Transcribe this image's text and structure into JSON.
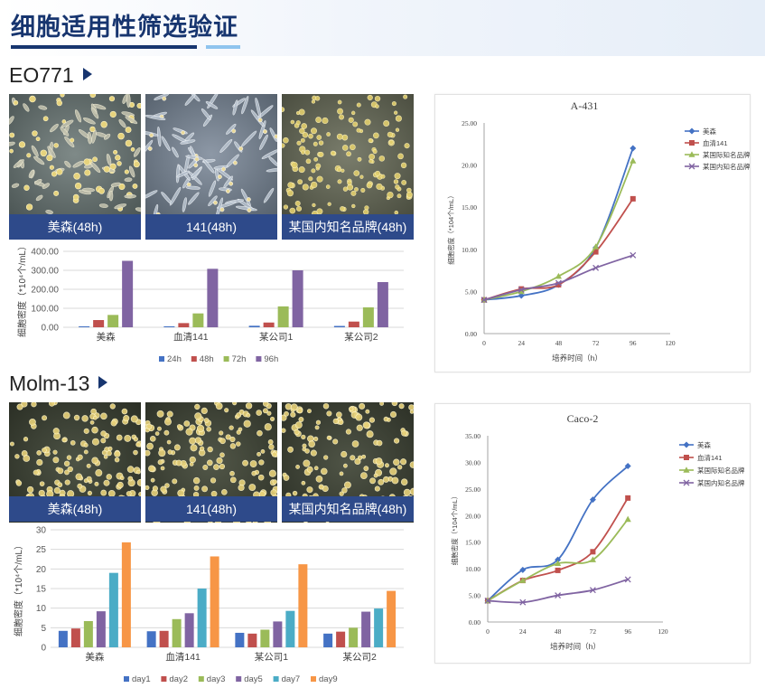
{
  "page": {
    "title": "细胞适用性筛选验证",
    "sections": [
      {
        "title": "EO771",
        "captions": [
          "美森(48h)",
          "141(48h)",
          "某国内知名品牌(48h)"
        ]
      },
      {
        "title": "Molm-13",
        "captions": [
          "美森(48h)",
          "141(48h)",
          "某国内知名品牌(48h)"
        ]
      }
    ]
  },
  "chart_data": [
    {
      "type": "bar",
      "ylabel": "细胞密度（*10⁴个/mL）",
      "ylim": [
        0,
        400
      ],
      "yticks": [
        "0.00",
        "100.00",
        "200.00",
        "300.00",
        "400.00"
      ],
      "categories": [
        "美森",
        "血清141",
        "某公司1",
        "某公司2"
      ],
      "legend_position": "bottom",
      "series": [
        {
          "name": "24h",
          "color": "#4472c4",
          "values": [
            5,
            5,
            8,
            7
          ]
        },
        {
          "name": "48h",
          "color": "#c0504d",
          "values": [
            38,
            22,
            25,
            30
          ]
        },
        {
          "name": "72h",
          "color": "#9bbb59",
          "values": [
            65,
            73,
            110,
            105
          ]
        },
        {
          "name": "96h",
          "color": "#8064a2",
          "values": [
            350,
            308,
            300,
            238
          ]
        }
      ]
    },
    {
      "type": "bar",
      "ylabel": "细胞密度（*10⁴个/mL）",
      "ylim": [
        0,
        30
      ],
      "yticks": [
        "0",
        "5",
        "10",
        "15",
        "20",
        "25",
        "30"
      ],
      "categories": [
        "美森",
        "血清141",
        "某公司1",
        "某公司2"
      ],
      "legend_position": "bottom",
      "series": [
        {
          "name": "day1",
          "color": "#4472c4",
          "values": [
            4.2,
            4.1,
            3.7,
            3.5
          ]
        },
        {
          "name": "day2",
          "color": "#c0504d",
          "values": [
            4.8,
            4.2,
            3.5,
            4.0
          ]
        },
        {
          "name": "day3",
          "color": "#9bbb59",
          "values": [
            6.7,
            7.2,
            4.5,
            5.0
          ]
        },
        {
          "name": "day5",
          "color": "#8064a2",
          "values": [
            9.2,
            8.7,
            6.6,
            9.1
          ]
        },
        {
          "name": "day7",
          "color": "#4bacc6",
          "values": [
            19.0,
            15.0,
            9.3,
            9.9
          ]
        },
        {
          "name": "day9",
          "color": "#f79646",
          "values": [
            26.8,
            23.2,
            21.2,
            14.4
          ]
        }
      ]
    },
    {
      "type": "line",
      "title": "A-431",
      "xlabel": "培养时间（h）",
      "ylabel": "细胞密度（*104个/mL）",
      "xlim": [
        0,
        120
      ],
      "ylim": [
        0,
        25
      ],
      "xticks": [
        "0",
        "24",
        "48",
        "72",
        "96",
        "120"
      ],
      "yticks": [
        "0.00",
        "5.00",
        "10.00",
        "15.00",
        "20.00",
        "25.00"
      ],
      "x": [
        0,
        24,
        48,
        72,
        96
      ],
      "legend_position": "right",
      "series": [
        {
          "name": "美森",
          "color": "#4472c4",
          "marker": "diamond",
          "values": [
            4.0,
            4.5,
            5.8,
            10.2,
            22.0
          ]
        },
        {
          "name": "血清141",
          "color": "#c0504d",
          "marker": "square",
          "values": [
            4.0,
            5.3,
            5.8,
            9.7,
            16.0
          ]
        },
        {
          "name": "某国际知名品牌",
          "color": "#9bbb59",
          "marker": "triangle",
          "values": [
            4.0,
            5.0,
            6.8,
            10.3,
            20.5
          ]
        },
        {
          "name": "某国内知名品牌",
          "color": "#8064a2",
          "marker": "x",
          "values": [
            4.0,
            5.2,
            6.0,
            7.8,
            9.3
          ]
        }
      ]
    },
    {
      "type": "line",
      "title": "Caco-2",
      "xlabel": "培养时间（h）",
      "ylabel": "细胞密度（*104个/mL）",
      "xlim": [
        0,
        120
      ],
      "ylim": [
        0,
        35
      ],
      "xticks": [
        "0",
        "24",
        "48",
        "72",
        "96",
        "120"
      ],
      "yticks": [
        "0.00",
        "5.00",
        "10.00",
        "15.00",
        "20.00",
        "25.00",
        "30.00",
        "35.00"
      ],
      "x": [
        0,
        24,
        48,
        72,
        96
      ],
      "legend_position": "right",
      "series": [
        {
          "name": "美森",
          "color": "#4472c4",
          "marker": "diamond",
          "values": [
            4.0,
            9.8,
            11.7,
            23.0,
            29.3
          ]
        },
        {
          "name": "血清141",
          "color": "#c0504d",
          "marker": "square",
          "values": [
            4.0,
            7.8,
            9.7,
            13.2,
            23.3
          ]
        },
        {
          "name": "某国际知名品牌",
          "color": "#9bbb59",
          "marker": "triangle",
          "values": [
            4.0,
            7.8,
            11.0,
            11.7,
            19.3
          ]
        },
        {
          "name": "某国内知名品牌",
          "color": "#8064a2",
          "marker": "x",
          "values": [
            4.0,
            3.7,
            5.0,
            6.0,
            8.0
          ]
        }
      ]
    }
  ]
}
